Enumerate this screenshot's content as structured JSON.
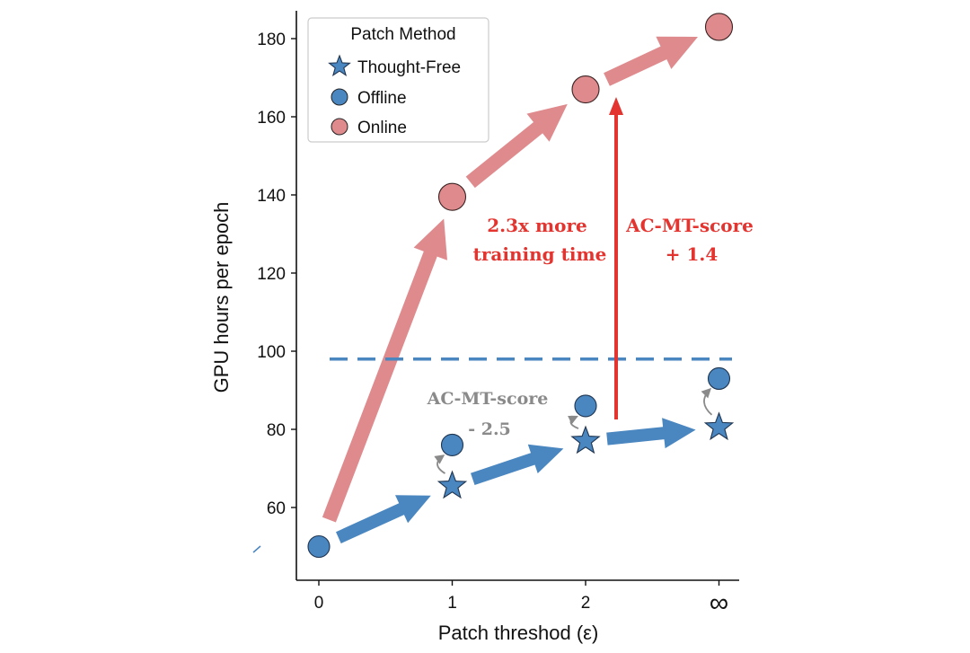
{
  "chart_data": {
    "type": "scatter",
    "xlabel": "Patch threshod (ε)",
    "ylabel": "GPU hours per epoch",
    "categories": [
      "0",
      "1",
      "2",
      "∞"
    ],
    "yticks": [
      60,
      80,
      100,
      120,
      140,
      160,
      180
    ],
    "ylim": [
      45,
      187
    ],
    "grid": false,
    "legend": {
      "title": "Patch Method",
      "position": "top-left",
      "entries": [
        "Thought-Free",
        "Offline",
        "Online"
      ]
    },
    "series": [
      {
        "name": "Thought-Free",
        "marker": "star",
        "color": "#4a86c0",
        "x": [
          0,
          1,
          2,
          3
        ],
        "values": [
          50,
          65.5,
          77,
          80.5
        ]
      },
      {
        "name": "Offline",
        "marker": "circle",
        "color": "#4a86c0",
        "x": [
          0,
          1,
          2,
          3
        ],
        "values": [
          50,
          76,
          86,
          93
        ]
      },
      {
        "name": "Online",
        "marker": "circle",
        "color": "#df8a8d",
        "x": [
          0,
          1,
          2,
          3
        ],
        "values": [
          50,
          139.5,
          167,
          183
        ]
      }
    ],
    "reference_line": {
      "value": 98,
      "color": "#4a86c0",
      "style": "dashed"
    },
    "colors": {
      "blue": "#4a86c0",
      "pink": "#df8a8d",
      "red": "#e3342f",
      "gray": "#8a8a8a"
    },
    "annotations": {
      "time_line1": "2.3x  more",
      "time_line2": "training time",
      "score_up_line1": "AC-MT-score",
      "score_up_line2": "+ 1.4",
      "score_down_line1": "AC-MT-score",
      "score_down_line2": "- 2.5"
    }
  }
}
